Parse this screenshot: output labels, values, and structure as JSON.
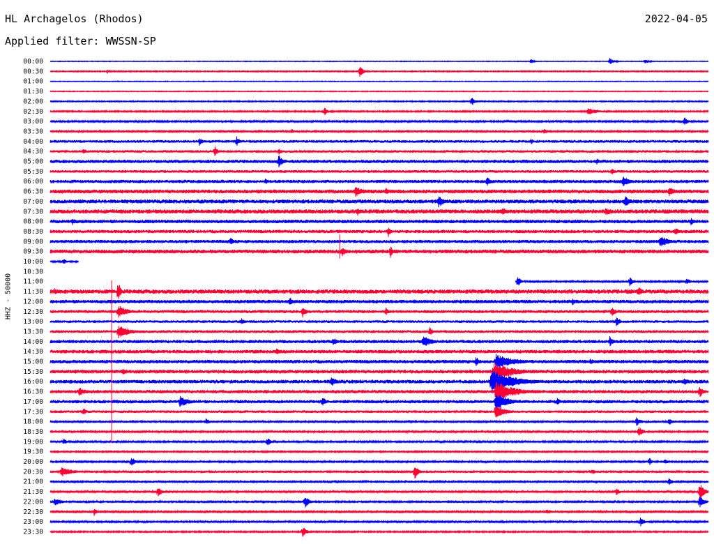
{
  "header": {
    "station": "HL Archagelos (Rhodos)",
    "date": "2022-04-05",
    "filter": "Applied filter: WWSSN-SP"
  },
  "y_axis_label": "HHZ - 50000",
  "colors": {
    "trace_a": "#0000ff",
    "trace_b": "#ff0033",
    "background": "#ffffff",
    "text": "#000000"
  },
  "chart_data": {
    "type": "line",
    "title": "HL Archagelos (Rhodos)",
    "subtitle": "Applied filter: WWSSN-SP",
    "ylabel": "HHZ - 50000",
    "xlabel": "",
    "grid": false,
    "legend": "none",
    "row_minutes": 30,
    "row_labels": [
      "00:00",
      "00:30",
      "01:00",
      "01:30",
      "02:00",
      "02:30",
      "03:00",
      "03:30",
      "04:00",
      "04:30",
      "05:00",
      "05:30",
      "06:00",
      "06:30",
      "07:00",
      "07:30",
      "08:00",
      "08:30",
      "09:00",
      "09:30",
      "10:00",
      "10:30",
      "11:00",
      "11:30",
      "12:00",
      "12:30",
      "13:00",
      "13:30",
      "14:00",
      "14:30",
      "15:00",
      "15:30",
      "16:00",
      "16:30",
      "17:00",
      "17:30",
      "18:00",
      "18:30",
      "19:00",
      "19:30",
      "20:00",
      "20:30",
      "21:00",
      "21:30",
      "22:00",
      "22:30",
      "23:00",
      "23:30"
    ],
    "row_colors": [
      "trace_a",
      "trace_b"
    ],
    "row_noise": [
      0.5,
      0.8,
      0.5,
      0.6,
      0.8,
      1.0,
      1.2,
      1.4,
      2.0,
      1.8,
      2.4,
      2.0,
      2.4,
      2.8,
      2.8,
      3.0,
      2.6,
      2.4,
      2.4,
      2.8,
      1.2,
      0,
      1.4,
      3.0,
      2.6,
      2.2,
      1.8,
      2.0,
      2.4,
      2.6,
      2.6,
      2.6,
      2.6,
      2.4,
      2.4,
      1.8,
      1.4,
      1.2,
      1.2,
      1.0,
      1.2,
      1.6,
      1.4,
      1.2,
      1.4,
      1.2,
      1.2,
      1.0
    ],
    "coverage": [
      {
        "row": "10:00",
        "from_min": 0.0,
        "to_min": 1.3
      },
      {
        "row": "10:30",
        "from_min": 0,
        "to_min": 0
      },
      {
        "row": "11:00",
        "from_min": 21.2,
        "to_min": 30
      }
    ],
    "events": [
      {
        "row": "00:00",
        "min": 21.9,
        "amp": 4,
        "dur": 0.4
      },
      {
        "row": "00:00",
        "min": 25.5,
        "amp": 5,
        "dur": 0.6
      },
      {
        "row": "00:00",
        "min": 27.1,
        "amp": 4,
        "dur": 0.6
      },
      {
        "row": "00:30",
        "min": 2.6,
        "amp": 4,
        "dur": 0.3
      },
      {
        "row": "00:30",
        "min": 14.1,
        "amp": 9,
        "dur": 0.5
      },
      {
        "row": "02:00",
        "min": 19.2,
        "amp": 8,
        "dur": 0.4
      },
      {
        "row": "02:30",
        "min": 12.5,
        "amp": 6,
        "dur": 0.5
      },
      {
        "row": "02:30",
        "min": 24.5,
        "amp": 5,
        "dur": 1.6
      },
      {
        "row": "03:00",
        "min": 28.9,
        "amp": 8,
        "dur": 0.5
      },
      {
        "row": "03:30",
        "min": 11.0,
        "amp": 4,
        "dur": 0.4
      },
      {
        "row": "03:30",
        "min": 22.5,
        "amp": 5,
        "dur": 0.5
      },
      {
        "row": "04:00",
        "min": 6.8,
        "amp": 7,
        "dur": 0.4
      },
      {
        "row": "04:00",
        "min": 8.5,
        "amp": 8,
        "dur": 0.4
      },
      {
        "row": "04:00",
        "min": 21.9,
        "amp": 5,
        "dur": 0.4
      },
      {
        "row": "04:30",
        "min": 1.5,
        "amp": 6,
        "dur": 0.4
      },
      {
        "row": "04:30",
        "min": 7.5,
        "amp": 8,
        "dur": 0.4
      },
      {
        "row": "04:30",
        "min": 10.4,
        "amp": 6,
        "dur": 0.4
      },
      {
        "row": "05:00",
        "min": 10.4,
        "amp": 11,
        "dur": 0.6
      },
      {
        "row": "05:00",
        "min": 24.9,
        "amp": 5,
        "dur": 0.5
      },
      {
        "row": "05:30",
        "min": 25.6,
        "amp": 6,
        "dur": 0.4
      },
      {
        "row": "06:00",
        "min": 9.8,
        "amp": 5,
        "dur": 0.4
      },
      {
        "row": "06:00",
        "min": 19.9,
        "amp": 8,
        "dur": 0.5
      },
      {
        "row": "06:00",
        "min": 26.1,
        "amp": 9,
        "dur": 0.8
      },
      {
        "row": "06:30",
        "min": 13.9,
        "amp": 8,
        "dur": 1.2
      },
      {
        "row": "06:30",
        "min": 15.3,
        "amp": 6,
        "dur": 0.6
      },
      {
        "row": "06:30",
        "min": 28.2,
        "amp": 7,
        "dur": 1.0
      },
      {
        "row": "07:00",
        "min": 17.7,
        "amp": 10,
        "dur": 0.8
      },
      {
        "row": "07:00",
        "min": 26.2,
        "amp": 9,
        "dur": 0.6
      },
      {
        "row": "07:30",
        "min": 14.0,
        "amp": 7,
        "dur": 0.5
      },
      {
        "row": "07:30",
        "min": 20.6,
        "amp": 7,
        "dur": 0.6
      },
      {
        "row": "07:30",
        "min": 25.3,
        "amp": 6,
        "dur": 1.2
      },
      {
        "row": "08:00",
        "min": 1.0,
        "amp": 6,
        "dur": 0.5
      },
      {
        "row": "08:00",
        "min": 29.2,
        "amp": 6,
        "dur": 0.5
      },
      {
        "row": "08:30",
        "min": 15.4,
        "amp": 9,
        "dur": 0.4
      },
      {
        "row": "08:30",
        "min": 28.5,
        "amp": 7,
        "dur": 0.5
      },
      {
        "row": "09:00",
        "min": 8.2,
        "amp": 7,
        "dur": 0.5
      },
      {
        "row": "09:00",
        "min": 27.8,
        "amp": 9,
        "dur": 1.2
      },
      {
        "row": "09:30",
        "min": 13.3,
        "amp": 8,
        "dur": 0.5
      },
      {
        "row": "09:30",
        "min": 15.5,
        "amp": 10,
        "dur": 0.3
      },
      {
        "row": "10:00",
        "min": 0.6,
        "amp": 5,
        "dur": 0.5
      },
      {
        "row": "11:00",
        "min": 21.3,
        "amp": 9,
        "dur": 0.4
      },
      {
        "row": "11:00",
        "min": 26.4,
        "amp": 8,
        "dur": 0.5
      },
      {
        "row": "11:00",
        "min": 29.0,
        "amp": 6,
        "dur": 0.5
      },
      {
        "row": "11:30",
        "min": 3.1,
        "amp": 18,
        "dur": 0.3
      },
      {
        "row": "11:30",
        "min": 0.2,
        "amp": 5,
        "dur": 0.5
      },
      {
        "row": "11:30",
        "min": 26.8,
        "amp": 8,
        "dur": 0.5
      },
      {
        "row": "12:00",
        "min": 10.9,
        "amp": 7,
        "dur": 0.5
      },
      {
        "row": "12:00",
        "min": 23.8,
        "amp": 6,
        "dur": 0.5
      },
      {
        "row": "12:30",
        "min": 3.1,
        "amp": 10,
        "dur": 1.2
      },
      {
        "row": "12:30",
        "min": 11.5,
        "amp": 9,
        "dur": 0.5
      },
      {
        "row": "12:30",
        "min": 15.3,
        "amp": 6,
        "dur": 0.5
      },
      {
        "row": "12:30",
        "min": 25.6,
        "amp": 8,
        "dur": 0.5
      },
      {
        "row": "13:00",
        "min": 8.7,
        "amp": 6,
        "dur": 0.5
      },
      {
        "row": "13:00",
        "min": 25.8,
        "amp": 8,
        "dur": 0.5
      },
      {
        "row": "13:30",
        "min": 3.1,
        "amp": 10,
        "dur": 1.6
      },
      {
        "row": "13:30",
        "min": 17.3,
        "amp": 7,
        "dur": 0.4
      },
      {
        "row": "14:00",
        "min": 17.0,
        "amp": 9,
        "dur": 1.2
      },
      {
        "row": "14:00",
        "min": 12.9,
        "amp": 7,
        "dur": 0.5
      },
      {
        "row": "14:00",
        "min": 25.5,
        "amp": 8,
        "dur": 0.5
      },
      {
        "row": "14:30",
        "min": 10.3,
        "amp": 6,
        "dur": 0.6
      },
      {
        "row": "15:00",
        "min": 19.4,
        "amp": 8,
        "dur": 0.5
      },
      {
        "row": "15:00",
        "min": 20.3,
        "amp": 12,
        "dur": 2.4
      },
      {
        "row": "15:00",
        "min": 24.6,
        "amp": 6,
        "dur": 0.5
      },
      {
        "row": "15:30",
        "min": 20.2,
        "amp": 14,
        "dur": 2.6
      },
      {
        "row": "15:30",
        "min": 3.3,
        "amp": 6,
        "dur": 0.5
      },
      {
        "row": "16:00",
        "min": 20.1,
        "amp": 18,
        "dur": 3.0
      },
      {
        "row": "16:00",
        "min": 12.8,
        "amp": 8,
        "dur": 0.7
      },
      {
        "row": "16:00",
        "min": 28.9,
        "amp": 7,
        "dur": 0.5
      },
      {
        "row": "16:30",
        "min": 20.3,
        "amp": 16,
        "dur": 2.4
      },
      {
        "row": "16:30",
        "min": 1.3,
        "amp": 7,
        "dur": 1.0
      },
      {
        "row": "16:30",
        "min": 29.6,
        "amp": 9,
        "dur": 0.5
      },
      {
        "row": "17:00",
        "min": 20.3,
        "amp": 14,
        "dur": 1.6
      },
      {
        "row": "17:00",
        "min": 5.9,
        "amp": 9,
        "dur": 1.2
      },
      {
        "row": "17:00",
        "min": 12.4,
        "amp": 8,
        "dur": 0.5
      },
      {
        "row": "17:00",
        "min": 23.1,
        "amp": 6,
        "dur": 0.5
      },
      {
        "row": "17:30",
        "min": 20.3,
        "amp": 12,
        "dur": 1.2
      },
      {
        "row": "17:30",
        "min": 1.5,
        "amp": 6,
        "dur": 0.5
      },
      {
        "row": "18:00",
        "min": 7.1,
        "amp": 5,
        "dur": 0.5
      },
      {
        "row": "18:00",
        "min": 26.7,
        "amp": 7,
        "dur": 0.7
      },
      {
        "row": "18:00",
        "min": 28.2,
        "amp": 6,
        "dur": 0.5
      },
      {
        "row": "18:30",
        "min": 26.8,
        "amp": 8,
        "dur": 0.7
      },
      {
        "row": "19:00",
        "min": 9.9,
        "amp": 8,
        "dur": 0.4
      },
      {
        "row": "19:00",
        "min": 0.6,
        "amp": 5,
        "dur": 0.5
      },
      {
        "row": "20:00",
        "min": 3.7,
        "amp": 9,
        "dur": 0.4
      },
      {
        "row": "20:00",
        "min": 27.3,
        "amp": 7,
        "dur": 0.4
      },
      {
        "row": "20:00",
        "min": 28.0,
        "amp": 5,
        "dur": 0.5
      },
      {
        "row": "20:30",
        "min": 0.5,
        "amp": 8,
        "dur": 1.5
      },
      {
        "row": "20:30",
        "min": 16.6,
        "amp": 12,
        "dur": 0.5
      },
      {
        "row": "20:30",
        "min": 24.7,
        "amp": 5,
        "dur": 0.5
      },
      {
        "row": "21:00",
        "min": 28.2,
        "amp": 6,
        "dur": 0.5
      },
      {
        "row": "21:30",
        "min": 4.9,
        "amp": 8,
        "dur": 0.6
      },
      {
        "row": "21:30",
        "min": 25.8,
        "amp": 6,
        "dur": 0.5
      },
      {
        "row": "21:30",
        "min": 29.6,
        "amp": 14,
        "dur": 0.6
      },
      {
        "row": "22:00",
        "min": 11.6,
        "amp": 10,
        "dur": 0.6
      },
      {
        "row": "22:00",
        "min": 0.2,
        "amp": 6,
        "dur": 1.0
      },
      {
        "row": "22:00",
        "min": 29.6,
        "amp": 10,
        "dur": 0.6
      },
      {
        "row": "22:30",
        "min": 2.0,
        "amp": 6,
        "dur": 0.5
      },
      {
        "row": "22:30",
        "min": 22.6,
        "amp": 4,
        "dur": 1.0
      },
      {
        "row": "23:00",
        "min": 26.9,
        "amp": 8,
        "dur": 0.5
      },
      {
        "row": "23:30",
        "min": 11.5,
        "amp": 9,
        "dur": 0.5
      }
    ],
    "spikes": [
      {
        "from_row": "11:30",
        "to_row": "18:30",
        "min": 2.8,
        "amp": 16
      },
      {
        "from_row": "09:00",
        "to_row": "09:30",
        "min": 13.2,
        "amp": 10
      }
    ]
  }
}
